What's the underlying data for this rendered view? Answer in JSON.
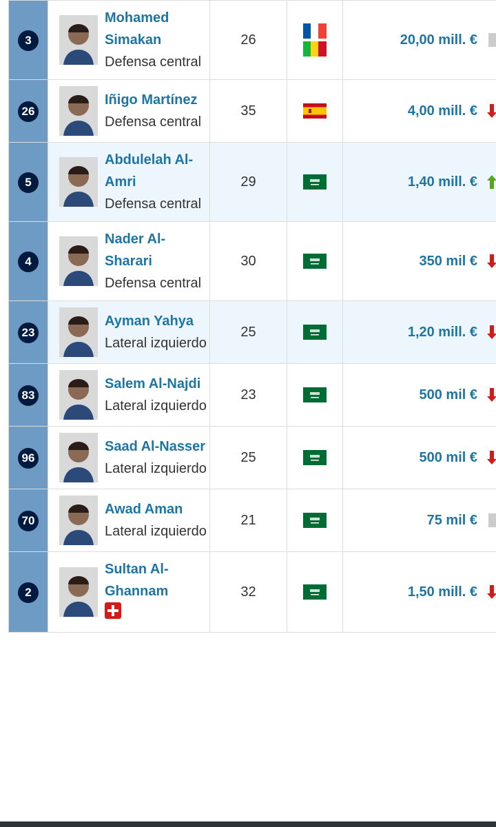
{
  "table": {
    "rows": [
      {
        "number": "3",
        "name": "Mohamed Simakan",
        "position": "Defensa central",
        "age": 26,
        "value": "20,00 mill. €"
      },
      {
        "number": "26",
        "name": "Iñigo Martínez",
        "position": "Defensa central",
        "age": 35,
        "value": "4,00 mill. €"
      },
      {
        "number": "5",
        "name": "Abdulelah Al-Amri",
        "position": "Defensa central",
        "age": 29,
        "value": "1,40 mill. €"
      },
      {
        "number": "4",
        "name": "Nader Al-Sharari",
        "position": "Defensa central",
        "age": 30,
        "value": "350 mil €"
      },
      {
        "number": "23",
        "name": "Ayman Yahya",
        "position": "Lateral izquierdo",
        "age": 25,
        "value": "1,20 mill. €"
      },
      {
        "number": "83",
        "name": "Salem Al-Najdi",
        "position": "Lateral izquierdo",
        "age": 23,
        "value": "500 mil €"
      },
      {
        "number": "96",
        "name": "Saad Al-Nasser",
        "position": "Lateral izquierdo",
        "age": 25,
        "value": "500 mil €"
      },
      {
        "number": "70",
        "name": "Awad Aman",
        "position": "Lateral izquierdo",
        "age": 21,
        "value": "75 mil €"
      },
      {
        "number": "2",
        "name": "Sultan Al-Ghannam",
        "age": 32,
        "value": "1,50 mill. €"
      }
    ]
  }
}
